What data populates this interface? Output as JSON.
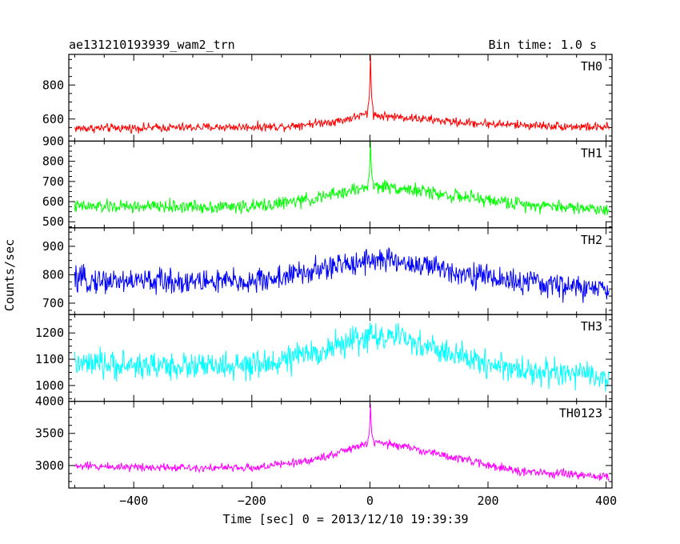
{
  "chart_data": {
    "type": "line",
    "title": "ae131210193939_wam2_trn",
    "bin_time_label": "Bin time: 1.0 s",
    "xlabel": "Time [sec] 0 = 2013/12/10 19:39:39",
    "ylabel": "Counts/sec",
    "xlim": [
      -510,
      410
    ],
    "xticks": [
      -400,
      -200,
      0,
      200,
      400
    ],
    "x_tick_labels": [
      "−400",
      "−200",
      "0",
      "200",
      "400"
    ],
    "x_range_data": [
      -500,
      405
    ],
    "panels": [
      {
        "name": "TH0",
        "color": "#ff0000",
        "ylim": [
          470,
          980
        ],
        "yticks": [
          600,
          800
        ],
        "y_tick_labels": [
          "600",
          "800"
        ],
        "profile": [
          [
            -500,
            545
          ],
          [
            -150,
            555
          ],
          [
            -50,
            590
          ],
          [
            -10,
            625
          ],
          [
            0,
            640
          ],
          [
            10,
            620
          ],
          [
            60,
            610
          ],
          [
            150,
            580
          ],
          [
            250,
            565
          ],
          [
            405,
            550
          ]
        ],
        "noise": 22,
        "spike": {
          "x": 1,
          "peak": 975
        }
      },
      {
        "name": "TH1",
        "color": "#00ff00",
        "ylim": [
          470,
          900
        ],
        "yticks": [
          500,
          600,
          700,
          800,
          900
        ],
        "y_tick_labels": [
          "500",
          "600",
          "700",
          "800",
          "900"
        ],
        "profile": [
          [
            -500,
            575
          ],
          [
            -200,
            575
          ],
          [
            -100,
            610
          ],
          [
            0,
            675
          ],
          [
            30,
            675
          ],
          [
            150,
            625
          ],
          [
            250,
            590
          ],
          [
            405,
            560
          ]
        ],
        "noise": 28,
        "spike": {
          "x": 1,
          "peak": 900
        }
      },
      {
        "name": "TH2",
        "color": "#0000ff",
        "ylim": [
          660,
          965
        ],
        "yticks": [
          700,
          800,
          900
        ],
        "y_tick_labels": [
          "700",
          "800",
          "900"
        ],
        "profile": [
          [
            -500,
            780
          ],
          [
            -200,
            775
          ],
          [
            -100,
            810
          ],
          [
            0,
            855
          ],
          [
            50,
            845
          ],
          [
            150,
            810
          ],
          [
            250,
            775
          ],
          [
            405,
            745
          ]
        ],
        "noise": 38,
        "spike": null
      },
      {
        "name": "TH3",
        "color": "#00ffff",
        "ylim": [
          940,
          1270
        ],
        "yticks": [
          1000,
          1100,
          1200
        ],
        "y_tick_labels": [
          "1000",
          "1100",
          "1200"
        ],
        "profile": [
          [
            -500,
            1080
          ],
          [
            -200,
            1070
          ],
          [
            -100,
            1120
          ],
          [
            0,
            1190
          ],
          [
            50,
            1180
          ],
          [
            150,
            1110
          ],
          [
            250,
            1060
          ],
          [
            405,
            1030
          ]
        ],
        "noise": 45,
        "spike": null
      },
      {
        "name": "TH0123",
        "color": "#ff00ff",
        "ylim": [
          2650,
          4000
        ],
        "yticks": [
          3000,
          3500,
          4000
        ],
        "y_tick_labels": [
          "3000",
          "3500",
          "4000"
        ],
        "profile": [
          [
            -500,
            2990
          ],
          [
            -200,
            2960
          ],
          [
            -100,
            3080
          ],
          [
            -10,
            3320
          ],
          [
            0,
            3350
          ],
          [
            40,
            3330
          ],
          [
            150,
            3110
          ],
          [
            250,
            2910
          ],
          [
            405,
            2820
          ]
        ],
        "noise": 55,
        "spike": {
          "x": 1,
          "peak": 3960
        }
      }
    ],
    "grid": false,
    "legend": "none"
  }
}
